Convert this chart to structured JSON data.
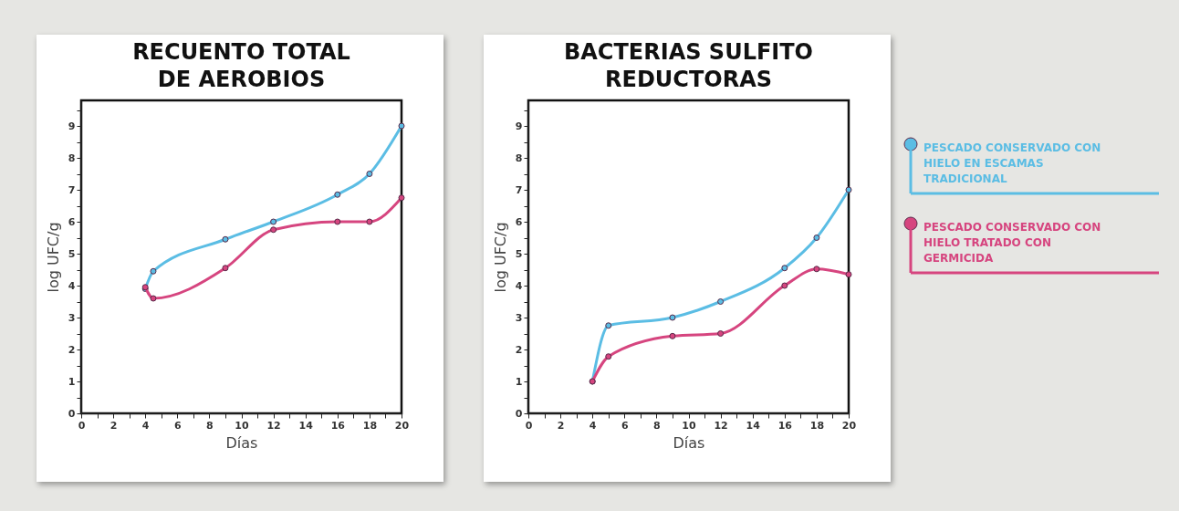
{
  "chart_data": [
    {
      "type": "line",
      "title": "RECUENTO TOTAL DE AEROBIOS",
      "xlabel": "Días",
      "ylabel": "log UFC/g",
      "xlim": [
        0,
        20
      ],
      "ylim": [
        0,
        9.8
      ],
      "xticks": [
        0,
        {
          "value": 1,
          "label": null
        },
        2,
        {
          "value": 3,
          "label": null
        },
        4,
        {
          "value": 5,
          "label": null
        },
        6,
        {
          "value": 7,
          "label": null
        },
        8,
        {
          "value": 9,
          "label": null
        },
        10,
        {
          "value": 11,
          "label": null
        },
        12,
        {
          "value": 13,
          "label": null
        },
        14,
        {
          "value": 15,
          "label": null
        },
        16,
        {
          "value": 17,
          "label": null
        },
        18,
        {
          "value": 19,
          "label": null
        },
        20
      ],
      "yticks": [
        0,
        {
          "value": 0.5,
          "label": null
        },
        1,
        {
          "value": 1.5,
          "label": null
        },
        2,
        {
          "value": 2.5,
          "label": null
        },
        3,
        {
          "value": 3.5,
          "label": null
        },
        4,
        {
          "value": 4.5,
          "label": null
        },
        5,
        {
          "value": 5.5,
          "label": null
        },
        6,
        {
          "value": 6.5,
          "label": null
        },
        7,
        {
          "value": 7.5,
          "label": null
        },
        8,
        {
          "value": 8.5,
          "label": null
        },
        9,
        {
          "value": 9.5,
          "label": null
        }
      ],
      "marker": "circle",
      "grid": false,
      "legend": "right",
      "series": [
        {
          "name": "PESCADO CONSERVADO CON HIELO EN ESCAMAS TRADICIONAL",
          "color": "#5bbde4",
          "x": [
            4,
            4.5,
            9,
            12,
            16,
            18,
            20
          ],
          "values": [
            3.9,
            4.45,
            5.45,
            6,
            6.85,
            7.5,
            9
          ]
        },
        {
          "name": "PESCADO CONSERVADO CON HIELO TRATADO CON GERMICIDA",
          "color": "#d6457f",
          "x": [
            4,
            4.5,
            9,
            12,
            16,
            18,
            20
          ],
          "values": [
            3.95,
            3.6,
            4.55,
            5.75,
            6,
            6,
            6.75
          ]
        }
      ]
    },
    {
      "type": "line",
      "title": "BACTERIAS SULFITO REDUCTORAS",
      "xlabel": "Días",
      "ylabel": "log UFC/g",
      "xlim": [
        0,
        20
      ],
      "ylim": [
        0,
        9.8
      ],
      "xticks": [
        0,
        {
          "value": 1,
          "label": null
        },
        2,
        {
          "value": 3,
          "label": null
        },
        4,
        {
          "value": 5,
          "label": null
        },
        6,
        {
          "value": 7,
          "label": null
        },
        8,
        {
          "value": 9,
          "label": null
        },
        10,
        {
          "value": 11,
          "label": null
        },
        12,
        {
          "value": 13,
          "label": null
        },
        14,
        {
          "value": 15,
          "label": null
        },
        16,
        {
          "value": 17,
          "label": null
        },
        18,
        {
          "value": 19,
          "label": null
        },
        20
      ],
      "yticks": [
        0,
        {
          "value": 0.5,
          "label": null
        },
        1,
        {
          "value": 1.5,
          "label": null
        },
        2,
        {
          "value": 2.5,
          "label": null
        },
        3,
        {
          "value": 3.5,
          "label": null
        },
        4,
        {
          "value": 4.5,
          "label": null
        },
        5,
        {
          "value": 5.5,
          "label": null
        },
        6,
        {
          "value": 6.5,
          "label": null
        },
        7,
        {
          "value": 7.5,
          "label": null
        },
        8,
        {
          "value": 8.5,
          "label": null
        },
        9,
        {
          "value": 9.5,
          "label": null
        }
      ],
      "marker": "circle",
      "grid": false,
      "legend": "right",
      "series": [
        {
          "name": "PESCADO CONSERVADO CON HIELO EN ESCAMAS TRADICIONAL",
          "color": "#5bbde4",
          "x": [
            4,
            5,
            9,
            12,
            16,
            18,
            20
          ],
          "values": [
            1,
            2.75,
            3,
            3.5,
            4.55,
            5.5,
            7
          ]
        },
        {
          "name": "PESCADO CONSERVADO CON HIELO TRATADO CON GERMICIDA",
          "color": "#d6457f",
          "x": [
            4,
            5,
            9,
            12,
            16,
            18,
            20
          ],
          "values": [
            1,
            1.78,
            2.42,
            2.5,
            4,
            4.52,
            4.35
          ]
        }
      ]
    }
  ]
}
